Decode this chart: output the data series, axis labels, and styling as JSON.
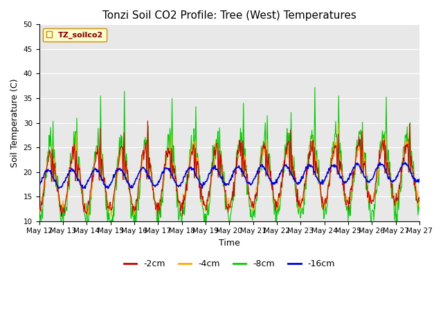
{
  "title": "Tonzi Soil CO2 Profile: Tree (West) Temperatures",
  "xlabel": "Time",
  "ylabel": "Soil Temperature (C)",
  "ylim": [
    10,
    50
  ],
  "yticks": [
    10,
    15,
    20,
    25,
    30,
    35,
    40,
    45,
    50
  ],
  "legend_label": "TZ_soilco2",
  "series_labels": [
    "-2cm",
    "-4cm",
    "-8cm",
    "-16cm"
  ],
  "series_colors": [
    "#cc0000",
    "#ffaa00",
    "#00cc00",
    "#0000dd"
  ],
  "background_color": "#ffffff",
  "plot_bg_color": "#e8e8e8",
  "n_days": 16,
  "x_tick_labels": [
    "May 12",
    "May 13",
    "May 14",
    "May 15",
    "May 16",
    "May 17",
    "May 18",
    "May 19",
    "May 20",
    "May 21",
    "May 22",
    "May 23",
    "May 24",
    "May 25",
    "May 26",
    "May 27"
  ]
}
